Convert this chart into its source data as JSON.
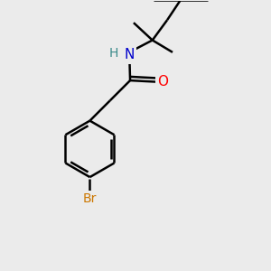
{
  "bg_color": "#ebebeb",
  "bond_color": "#000000",
  "bond_width": 1.8,
  "atom_colors": {
    "N": "#0000cc",
    "O": "#ff0000",
    "Br": "#cc7700",
    "H": "#3a8a8a",
    "C": "#000000"
  },
  "font_size_atom": 11,
  "font_size_H": 10,
  "fig_size": [
    3.0,
    3.0
  ],
  "dpi": 100,
  "xlim": [
    0,
    10
  ],
  "ylim": [
    0,
    10
  ]
}
